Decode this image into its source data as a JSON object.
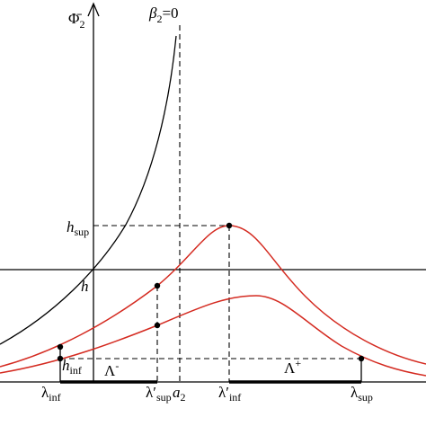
{
  "axis_label": {
    "main": "Φ̄",
    "sub": "2"
  },
  "asymptote_label": {
    "main": "β",
    "sub": "2",
    "rest": "=0"
  },
  "levels": {
    "h_sup": {
      "main": "h",
      "sub": "sup"
    },
    "h": {
      "main": "h"
    },
    "h_inf": {
      "main": "h",
      "sub": "inf"
    }
  },
  "intervals": {
    "minus": {
      "main": "Λ",
      "sup": "-"
    },
    "plus": {
      "main": "Λ",
      "sup": "+"
    }
  },
  "x_labels": [
    {
      "main": "λ",
      "sub": "inf"
    },
    {
      "main": "λ′",
      "sub": "sup"
    },
    {
      "main": "a",
      "sub": "2"
    },
    {
      "main": "λ′",
      "sub": "inf"
    },
    {
      "main": "λ",
      "sub": "sup"
    }
  ]
}
